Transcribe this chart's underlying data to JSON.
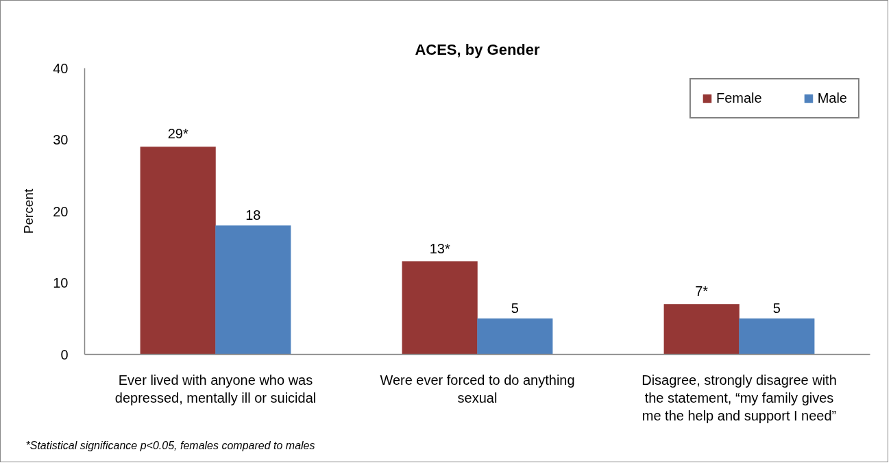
{
  "chart_data": {
    "type": "bar",
    "title": "ACES, by Gender",
    "ylabel": "Percent",
    "categories": [
      "Ever lived with anyone who was\ndepressed, mentally ill or suicidal",
      "Were ever forced to do anything\nsexual",
      "Disagree, strongly disagree with\nthe statement, “my family gives\nme the help and support I need”"
    ],
    "series": [
      {
        "name": "Female",
        "color": "#953735",
        "values": [
          29,
          13,
          7
        ],
        "value_labels": [
          "29*",
          "13*",
          "7*"
        ]
      },
      {
        "name": "Male",
        "color": "#4f81bd",
        "values": [
          18,
          5,
          5
        ],
        "value_labels": [
          "18",
          "5",
          "5"
        ]
      }
    ],
    "ylim": [
      0,
      40
    ],
    "yticks": [
      0,
      10,
      20,
      30,
      40
    ],
    "grid": false,
    "legend": "top right",
    "annotations": [
      "*Statistical significance p<0.05, females compared to males"
    ]
  }
}
